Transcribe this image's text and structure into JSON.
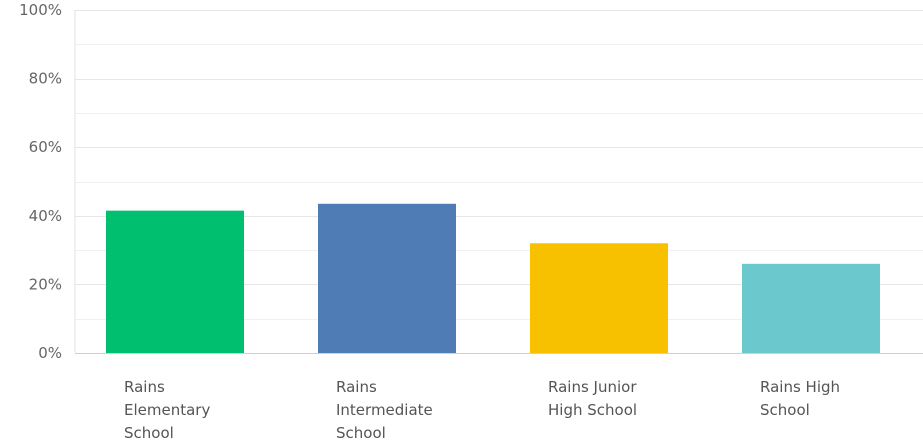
{
  "chart_data": {
    "type": "bar",
    "categories": [
      "Rains Elementary School",
      "Rains Intermediate School",
      "Rains Junior High School",
      "Rains High School"
    ],
    "category_label_lines": [
      [
        "Rains",
        "Elementary",
        "School"
      ],
      [
        "Rains",
        "Intermediate",
        "School"
      ],
      [
        "Rains Junior",
        "High School"
      ],
      [
        "Rains High",
        "School"
      ]
    ],
    "values": [
      41.5,
      43.5,
      32,
      26
    ],
    "colors": [
      "#00BF6F",
      "#507CB6",
      "#F7C100",
      "#6BC8CD"
    ],
    "y_ticks": [
      "0%",
      "20%",
      "40%",
      "60%",
      "80%",
      "100%"
    ],
    "ylim": [
      0,
      100
    ],
    "grid": true,
    "grid_minor": true
  }
}
